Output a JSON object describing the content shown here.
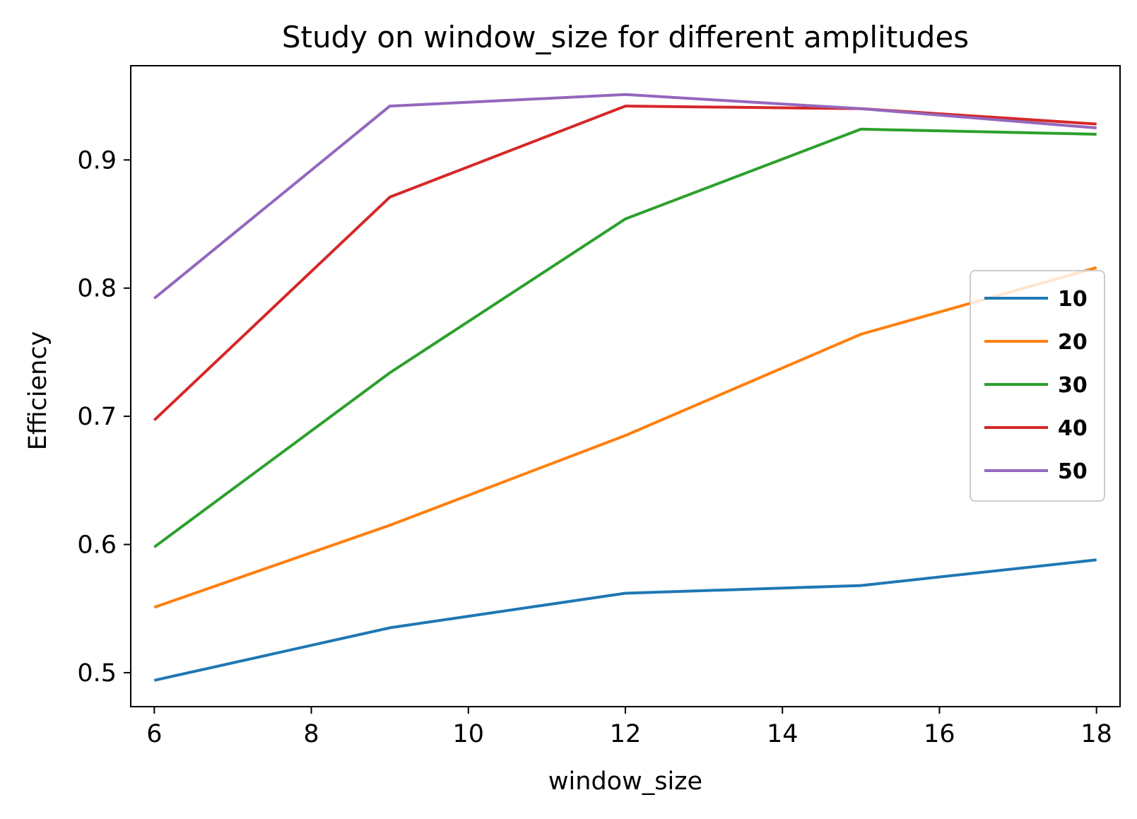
{
  "chart_data": {
    "type": "line",
    "title": "Study on window_size for different amplitudes",
    "xlabel": "window_size",
    "ylabel": "Efficiency",
    "x": [
      6,
      9,
      12,
      15,
      18
    ],
    "xlim": [
      5.7,
      18.3
    ],
    "ylim": [
      0.4735,
      0.9735
    ],
    "xticks": [
      6,
      8,
      10,
      12,
      14,
      16,
      18
    ],
    "yticks": [
      0.5,
      0.6,
      0.7,
      0.8,
      0.9
    ],
    "ytick_labels": [
      "0.5",
      "0.6",
      "0.7",
      "0.8",
      "0.9"
    ],
    "grid": false,
    "legend_position": "center-right",
    "series": [
      {
        "name": "10",
        "color": "#1f77b4",
        "values": [
          0.494,
          0.535,
          0.562,
          0.568,
          0.588
        ]
      },
      {
        "name": "20",
        "color": "#ff7f0e",
        "values": [
          0.551,
          0.615,
          0.685,
          0.764,
          0.816
        ]
      },
      {
        "name": "30",
        "color": "#2ca02c",
        "values": [
          0.598,
          0.734,
          0.854,
          0.924,
          0.92
        ]
      },
      {
        "name": "40",
        "color": "#d62728",
        "values": [
          0.697,
          0.871,
          0.942,
          0.94,
          0.928
        ]
      },
      {
        "name": "50",
        "color": "#9467bd",
        "values": [
          0.792,
          0.942,
          0.951,
          0.94,
          0.925
        ]
      }
    ]
  }
}
